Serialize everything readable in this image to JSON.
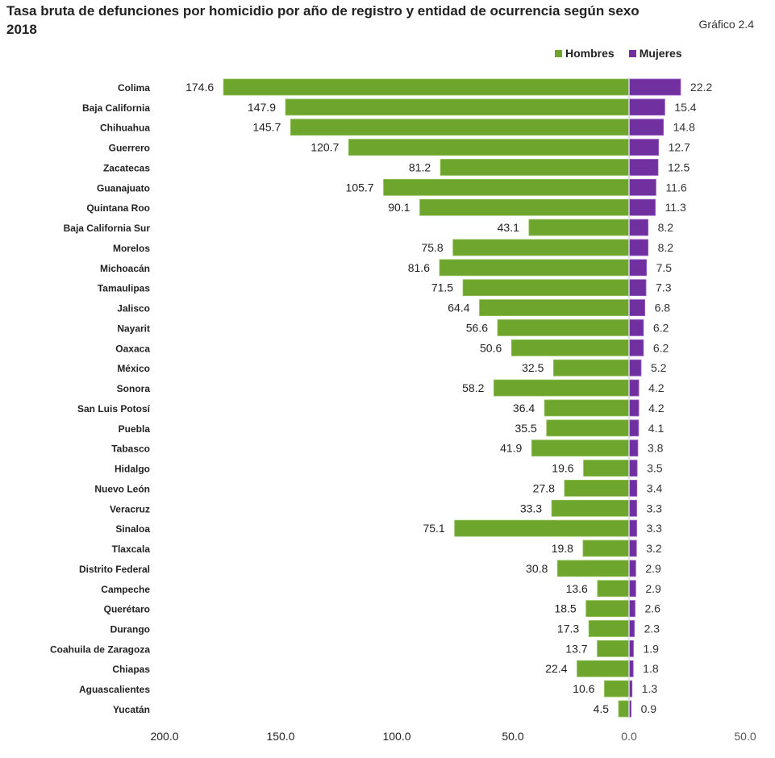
{
  "chart_data": {
    "type": "bar",
    "orientation": "horizontal-diverging",
    "title": "Tasa bruta de defunciones por homicidio por año de registro y entidad de ocurrencia según sexo",
    "subtitle": "2018",
    "code": "Gráfico 2.4",
    "categories": [
      "Colima",
      "Baja California",
      "Chihuahua",
      "Guerrero",
      "Zacatecas",
      "Guanajuato",
      "Quintana Roo",
      "Baja California Sur",
      "Morelos",
      "Michoacán",
      "Tamaulipas",
      "Jalisco",
      "Nayarit",
      "Oaxaca",
      "México",
      "Sonora",
      "San Luis Potosí",
      "Puebla",
      "Tabasco",
      "Hidalgo",
      "Nuevo León",
      "Veracruz",
      "Sinaloa",
      "Tlaxcala",
      "Distrito Federal",
      "Campeche",
      "Querétaro",
      "Durango",
      "Coahuila de Zaragoza",
      "Chiapas",
      "Aguascalientes",
      "Yucatán"
    ],
    "series": [
      {
        "name": "Hombres",
        "color": "#6ea52d",
        "values": [
          174.6,
          147.9,
          145.7,
          120.7,
          81.2,
          105.7,
          90.1,
          43.1,
          75.8,
          81.6,
          71.5,
          64.4,
          56.6,
          50.6,
          32.5,
          58.2,
          36.4,
          35.5,
          41.9,
          19.6,
          27.8,
          33.3,
          75.1,
          19.8,
          30.8,
          13.6,
          18.5,
          17.3,
          13.7,
          22.4,
          10.6,
          4.5
        ]
      },
      {
        "name": "Mujeres",
        "color": "#7030a0",
        "values": [
          22.2,
          15.4,
          14.8,
          12.7,
          12.5,
          11.6,
          11.3,
          8.2,
          8.2,
          7.5,
          7.3,
          6.8,
          6.2,
          6.2,
          5.2,
          4.2,
          4.2,
          4.1,
          3.8,
          3.5,
          3.4,
          3.3,
          3.3,
          3.2,
          2.9,
          2.9,
          2.6,
          2.3,
          1.9,
          1.8,
          1.3,
          0.9
        ]
      }
    ],
    "xticks": [
      "200.0",
      "150.0",
      "100.0",
      "50.0",
      "0.0",
      "50.0"
    ],
    "xtick_values": [
      -200,
      -150,
      -100,
      -50,
      0,
      50
    ],
    "xlim": [
      -200,
      50
    ],
    "legend_position": "top-right",
    "grid": false
  }
}
